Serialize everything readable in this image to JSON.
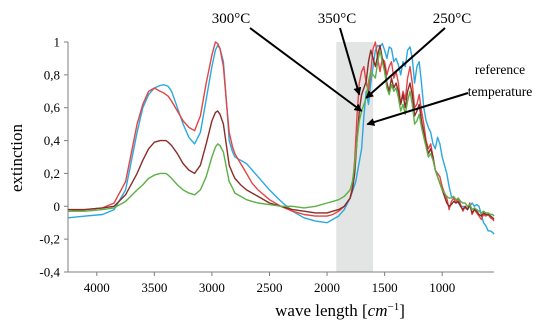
{
  "chart_data": {
    "type": "line",
    "xlabel": "wave length [cm⁻¹]",
    "xlabel_parts": {
      "main": "wave length [",
      "unit": "cm",
      "exp": "−1",
      "close": "]"
    },
    "ylabel": "extinction",
    "xlim": [
      4250,
      550
    ],
    "ylim": [
      -0.4,
      1.0
    ],
    "x_ticks": [
      4000,
      3500,
      3000,
      2500,
      2000,
      1500,
      1000
    ],
    "x_tick_labels": [
      "4000",
      "3500",
      "3000",
      "2500",
      "2000",
      "1500",
      "1000"
    ],
    "y_ticks": [
      -0.4,
      -0.2,
      0,
      0.2,
      0.4,
      0.6,
      0.8,
      1.0
    ],
    "y_tick_labels": [
      "-0,4",
      "-0,2",
      "0",
      "0,2",
      "0,4",
      "0,6",
      "0,8",
      "1"
    ],
    "grid": false,
    "legend": "none",
    "shaded_band": {
      "x_from": 1920,
      "x_to": 1600,
      "color": "#e2e5e4"
    },
    "annotations": [
      {
        "id": "t300",
        "text": "300°C",
        "series": "300°C",
        "target": [
          1700,
          0.58
        ]
      },
      {
        "id": "t350",
        "text": "350°C",
        "series": "350°C",
        "target": [
          1720,
          0.68
        ]
      },
      {
        "id": "t250",
        "text": "250°C",
        "series": "250°C",
        "target": [
          1660,
          0.66
        ]
      },
      {
        "id": "tref1",
        "text": "reference",
        "series": "reference temperature",
        "target": [
          1650,
          0.5
        ]
      },
      {
        "id": "tref2",
        "text": "temperature"
      }
    ],
    "series": [
      {
        "name": "reference temperature",
        "color": "#2aa8e0",
        "x": [
          4250,
          4100,
          3950,
          3850,
          3750,
          3650,
          3600,
          3550,
          3500,
          3450,
          3420,
          3400,
          3380,
          3350,
          3300,
          3250,
          3200,
          3150,
          3100,
          3050,
          3000,
          2970,
          2950,
          2930,
          2900,
          2870,
          2850,
          2820,
          2800,
          2750,
          2700,
          2650,
          2600,
          2500,
          2400,
          2300,
          2200,
          2100,
          2000,
          1950,
          1900,
          1850,
          1800,
          1750,
          1700,
          1680,
          1660,
          1640,
          1620,
          1600,
          1580,
          1560,
          1540,
          1520,
          1500,
          1480,
          1460,
          1440,
          1420,
          1400,
          1380,
          1360,
          1340,
          1320,
          1300,
          1280,
          1260,
          1240,
          1220,
          1200,
          1180,
          1160,
          1140,
          1120,
          1100,
          1080,
          1060,
          1040,
          1020,
          1000,
          980,
          960,
          940,
          920,
          900,
          880,
          860,
          840,
          820,
          800,
          780,
          760,
          740,
          720,
          700,
          680,
          660,
          640,
          620,
          600,
          580,
          560,
          550
        ],
        "y": [
          -0.07,
          -0.06,
          -0.05,
          -0.02,
          0.1,
          0.45,
          0.6,
          0.68,
          0.72,
          0.735,
          0.74,
          0.735,
          0.73,
          0.7,
          0.6,
          0.5,
          0.42,
          0.38,
          0.45,
          0.65,
          0.85,
          0.95,
          0.98,
          0.96,
          0.88,
          0.6,
          0.4,
          0.33,
          0.3,
          0.28,
          0.26,
          0.22,
          0.18,
          0.1,
          0.03,
          -0.03,
          -0.07,
          -0.09,
          -0.1,
          -0.08,
          -0.06,
          -0.02,
          0.05,
          0.15,
          0.35,
          0.55,
          0.7,
          0.62,
          0.75,
          0.85,
          0.95,
          0.98,
          0.97,
          0.99,
          0.95,
          0.9,
          0.97,
          0.96,
          0.88,
          0.9,
          0.86,
          0.8,
          0.88,
          0.85,
          0.95,
          0.97,
          0.9,
          0.75,
          0.85,
          0.88,
          0.75,
          0.6,
          0.52,
          0.48,
          0.45,
          0.38,
          0.35,
          0.42,
          0.38,
          0.3,
          0.25,
          0.2,
          0.12,
          0.06,
          0.05,
          0.04,
          0.02,
          0.0,
          0.0,
          -0.01,
          -0.02,
          0.0,
          0.02,
          0.0,
          0.01,
          0.0,
          -0.05,
          -0.1,
          -0.12,
          -0.15,
          -0.15,
          -0.16,
          -0.17
        ]
      },
      {
        "name": "300°C",
        "color": "#e24545",
        "x": [
          4250,
          4100,
          3950,
          3850,
          3750,
          3650,
          3600,
          3550,
          3500,
          3450,
          3420,
          3400,
          3380,
          3350,
          3300,
          3250,
          3200,
          3150,
          3100,
          3050,
          3000,
          2970,
          2950,
          2930,
          2900,
          2870,
          2850,
          2820,
          2800,
          2750,
          2700,
          2650,
          2600,
          2500,
          2400,
          2300,
          2200,
          2100,
          2000,
          1950,
          1900,
          1850,
          1800,
          1780,
          1760,
          1740,
          1720,
          1700,
          1680,
          1660,
          1640,
          1620,
          1600,
          1580,
          1560,
          1540,
          1520,
          1500,
          1480,
          1460,
          1440,
          1420,
          1400,
          1380,
          1360,
          1340,
          1320,
          1300,
          1280,
          1260,
          1240,
          1220,
          1200,
          1180,
          1160,
          1140,
          1120,
          1100,
          1080,
          1060,
          1040,
          1020,
          1000,
          980,
          960,
          940,
          920,
          900,
          880,
          860,
          840,
          820,
          800,
          780,
          760,
          740,
          720,
          700,
          680,
          660,
          640,
          620,
          600,
          580,
          560,
          550
        ],
        "y": [
          -0.03,
          -0.02,
          -0.01,
          0.02,
          0.15,
          0.5,
          0.62,
          0.7,
          0.72,
          0.7,
          0.69,
          0.68,
          0.67,
          0.64,
          0.58,
          0.52,
          0.48,
          0.46,
          0.55,
          0.75,
          0.92,
          1.0,
          0.99,
          0.96,
          0.85,
          0.6,
          0.45,
          0.36,
          0.32,
          0.26,
          0.2,
          0.14,
          0.1,
          0.04,
          0.0,
          -0.03,
          -0.05,
          -0.06,
          -0.06,
          -0.05,
          -0.03,
          0.0,
          0.05,
          0.12,
          0.28,
          0.55,
          0.75,
          0.82,
          0.85,
          0.75,
          0.7,
          0.82,
          0.96,
          1.0,
          0.9,
          0.82,
          0.9,
          0.88,
          0.8,
          0.85,
          0.88,
          0.78,
          0.82,
          0.75,
          0.62,
          0.7,
          0.65,
          0.78,
          0.85,
          0.75,
          0.6,
          0.62,
          0.68,
          0.58,
          0.5,
          0.4,
          0.35,
          0.38,
          0.3,
          0.22,
          0.2,
          0.18,
          0.12,
          0.08,
          0.05,
          -0.02,
          0.03,
          0.05,
          0.02,
          0.05,
          0.01,
          -0.03,
          0.0,
          -0.02,
          0.02,
          -0.05,
          -0.02,
          -0.04,
          -0.06,
          -0.08,
          -0.05,
          -0.06,
          -0.05,
          -0.07,
          -0.08,
          -0.09
        ]
      },
      {
        "name": "350°C",
        "color": "#8a2c28",
        "x": [
          4250,
          4100,
          3950,
          3850,
          3750,
          3650,
          3600,
          3550,
          3500,
          3450,
          3420,
          3400,
          3380,
          3350,
          3300,
          3250,
          3200,
          3150,
          3100,
          3050,
          3000,
          2970,
          2950,
          2930,
          2900,
          2870,
          2850,
          2820,
          2800,
          2750,
          2700,
          2650,
          2600,
          2500,
          2400,
          2300,
          2200,
          2100,
          2000,
          1950,
          1900,
          1850,
          1800,
          1780,
          1760,
          1740,
          1720,
          1700,
          1680,
          1660,
          1640,
          1620,
          1600,
          1580,
          1560,
          1540,
          1520,
          1500,
          1480,
          1460,
          1440,
          1420,
          1400,
          1380,
          1360,
          1340,
          1320,
          1300,
          1280,
          1260,
          1240,
          1220,
          1200,
          1180,
          1160,
          1140,
          1120,
          1100,
          1080,
          1060,
          1040,
          1020,
          1000,
          980,
          960,
          940,
          920,
          900,
          880,
          860,
          840,
          820,
          800,
          780,
          760,
          740,
          720,
          700,
          680,
          660,
          640,
          620,
          600,
          580,
          560,
          550
        ],
        "y": [
          -0.02,
          -0.02,
          -0.01,
          0.0,
          0.07,
          0.2,
          0.28,
          0.35,
          0.39,
          0.4,
          0.4,
          0.4,
          0.39,
          0.37,
          0.32,
          0.26,
          0.22,
          0.2,
          0.25,
          0.38,
          0.52,
          0.57,
          0.58,
          0.56,
          0.5,
          0.35,
          0.25,
          0.2,
          0.17,
          0.13,
          0.1,
          0.08,
          0.06,
          0.02,
          0.0,
          -0.02,
          -0.03,
          -0.04,
          -0.04,
          -0.03,
          -0.02,
          0.0,
          0.05,
          0.1,
          0.2,
          0.4,
          0.58,
          0.68,
          0.72,
          0.76,
          0.88,
          0.95,
          0.9,
          0.85,
          0.92,
          0.98,
          0.9,
          0.85,
          0.75,
          0.7,
          0.78,
          0.72,
          0.75,
          0.7,
          0.62,
          0.68,
          0.6,
          0.7,
          0.75,
          0.68,
          0.55,
          0.58,
          0.62,
          0.52,
          0.45,
          0.38,
          0.32,
          0.35,
          0.3,
          0.22,
          0.18,
          0.14,
          0.1,
          0.06,
          0.02,
          0.0,
          0.01,
          0.03,
          0.02,
          0.03,
          0.0,
          -0.02,
          0.0,
          -0.02,
          0.01,
          -0.04,
          -0.02,
          -0.03,
          -0.05,
          -0.06,
          -0.04,
          -0.05,
          -0.05,
          -0.06,
          -0.07,
          -0.08
        ]
      },
      {
        "name": "250°C",
        "color": "#5cb045",
        "x": [
          4250,
          4100,
          3950,
          3850,
          3750,
          3650,
          3600,
          3550,
          3500,
          3450,
          3420,
          3400,
          3380,
          3350,
          3300,
          3250,
          3200,
          3150,
          3100,
          3050,
          3000,
          2970,
          2950,
          2930,
          2900,
          2870,
          2850,
          2820,
          2800,
          2750,
          2700,
          2650,
          2600,
          2500,
          2400,
          2300,
          2200,
          2100,
          2000,
          1950,
          1900,
          1850,
          1800,
          1780,
          1760,
          1740,
          1720,
          1700,
          1680,
          1660,
          1640,
          1620,
          1600,
          1580,
          1560,
          1540,
          1520,
          1500,
          1480,
          1460,
          1440,
          1420,
          1400,
          1380,
          1360,
          1340,
          1320,
          1300,
          1280,
          1260,
          1240,
          1220,
          1200,
          1180,
          1160,
          1140,
          1120,
          1100,
          1080,
          1060,
          1040,
          1020,
          1000,
          980,
          960,
          940,
          920,
          900,
          880,
          860,
          840,
          820,
          800,
          780,
          760,
          740,
          720,
          700,
          680,
          660,
          640,
          620,
          600,
          580,
          560,
          550
        ],
        "y": [
          -0.03,
          -0.03,
          -0.02,
          -0.01,
          0.03,
          0.1,
          0.13,
          0.17,
          0.19,
          0.2,
          0.2,
          0.2,
          0.19,
          0.17,
          0.13,
          0.1,
          0.08,
          0.07,
          0.1,
          0.18,
          0.3,
          0.36,
          0.38,
          0.37,
          0.33,
          0.22,
          0.15,
          0.11,
          0.08,
          0.06,
          0.04,
          0.03,
          0.02,
          0.01,
          0.0,
          0.0,
          -0.01,
          0.0,
          0.02,
          0.03,
          0.04,
          0.06,
          0.1,
          0.15,
          0.25,
          0.4,
          0.52,
          0.58,
          0.62,
          0.66,
          0.76,
          0.82,
          0.8,
          0.78,
          0.88,
          0.95,
          0.88,
          0.82,
          0.72,
          0.68,
          0.74,
          0.7,
          0.72,
          0.66,
          0.58,
          0.62,
          0.56,
          0.64,
          0.7,
          0.62,
          0.5,
          0.52,
          0.56,
          0.48,
          0.42,
          0.36,
          0.3,
          0.32,
          0.28,
          0.22,
          0.18,
          0.14,
          0.1,
          0.08,
          0.06,
          0.05,
          0.05,
          0.06,
          0.04,
          0.05,
          0.03,
          0.02,
          0.02,
          0.0,
          0.01,
          -0.02,
          -0.01,
          -0.02,
          -0.03,
          -0.04,
          -0.03,
          -0.04,
          -0.04,
          -0.05,
          -0.05,
          -0.06
        ]
      }
    ]
  }
}
